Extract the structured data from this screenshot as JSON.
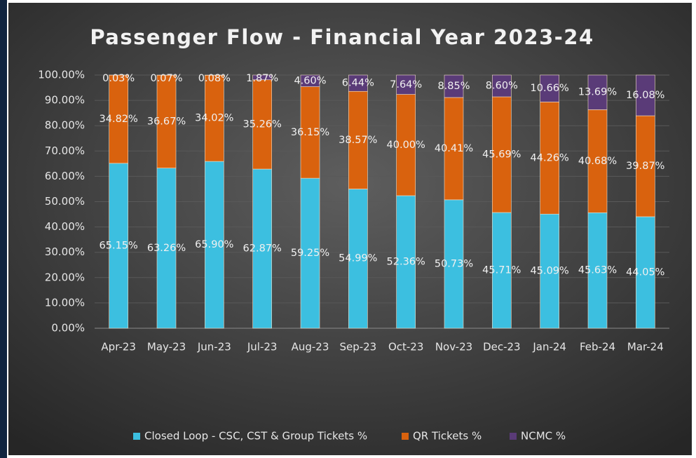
{
  "chart_data": {
    "type": "stacked_bar",
    "title": "Passenger Flow - Financial Year 2023-24",
    "categories": [
      "Apr-23",
      "May-23",
      "Jun-23",
      "Jul-23",
      "Aug-23",
      "Sep-23",
      "Oct-23",
      "Nov-23",
      "Dec-23",
      "Jan-24",
      "Feb-24",
      "Mar-24"
    ],
    "series": [
      {
        "name": "Closed Loop - CSC, CST & Group Tickets %",
        "color": "#3cbfe0",
        "values": [
          65.15,
          63.26,
          65.9,
          62.87,
          59.25,
          54.99,
          52.36,
          50.73,
          45.71,
          45.09,
          45.63,
          44.05
        ],
        "value_labels": [
          "65.15%",
          "63.26%",
          "65.90%",
          "62.87%",
          "59.25%",
          "54.99%",
          "52.36%",
          "50.73%",
          "45.71%",
          "45.09%",
          "45.63%",
          "44.05%"
        ]
      },
      {
        "name": "QR Tickets %",
        "color": "#d9620e",
        "values": [
          34.82,
          36.67,
          34.02,
          35.26,
          36.15,
          38.57,
          40,
          40.41,
          45.69,
          44.26,
          40.68,
          39.87
        ],
        "value_labels": [
          "34.82%",
          "36.67%",
          "34.02%",
          "35.26%",
          "36.15%",
          "38.57%",
          "40.00%",
          "40.41%",
          "45.69%",
          "44.26%",
          "40.68%",
          "39.87%"
        ]
      },
      {
        "name": "NCMC  %",
        "color": "#5a3b78",
        "values": [
          0.03,
          0.07,
          0.08,
          1.87,
          4.6,
          6.44,
          7.64,
          8.85,
          8.6,
          10.66,
          13.69,
          16.08
        ],
        "value_labels": [
          "0.03%",
          "0.07%",
          "0.08%",
          "1.87%",
          "4.60%",
          "6.44%",
          "7.64%",
          "8.85%",
          "8.60%",
          "10.66%",
          "13.69%",
          "16.08%"
        ]
      }
    ],
    "ylim": [
      0,
      100
    ],
    "yticks": [
      {
        "value": 0,
        "label": "0.00%"
      },
      {
        "value": 10,
        "label": "10.00%"
      },
      {
        "value": 20,
        "label": "20.00%"
      },
      {
        "value": 30,
        "label": "30.00%"
      },
      {
        "value": 40,
        "label": "40.00%"
      },
      {
        "value": 50,
        "label": "50.00%"
      },
      {
        "value": 60,
        "label": "60.00%"
      },
      {
        "value": 70,
        "label": "70.00%"
      },
      {
        "value": 80,
        "label": "80.00%"
      },
      {
        "value": 90,
        "label": "90.00%"
      },
      {
        "value": 100,
        "label": "100.00%"
      }
    ],
    "grid": true,
    "legend": "bottom"
  }
}
